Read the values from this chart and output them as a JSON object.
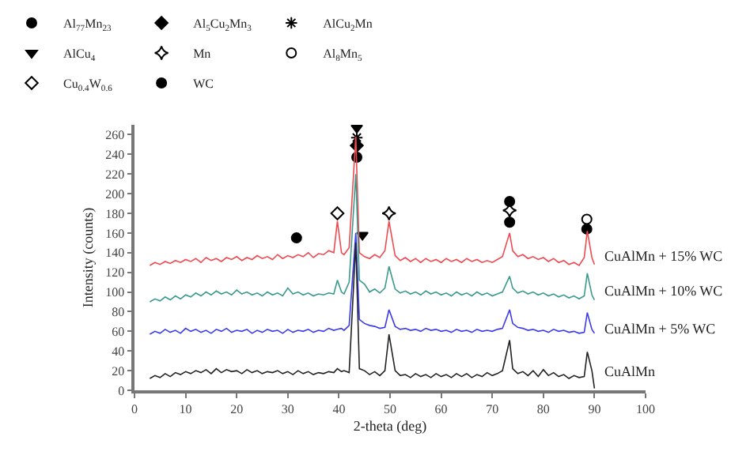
{
  "chart_data": {
    "type": "line",
    "xlabel": "2-theta (deg)",
    "ylabel": "Intensity (counts)",
    "xlim": [
      0,
      100
    ],
    "xticks": [
      0,
      10,
      20,
      30,
      40,
      50,
      60,
      70,
      80,
      90,
      100
    ],
    "ylim": [
      0,
      270
    ],
    "yticks": [
      0,
      20,
      40,
      60,
      80,
      100,
      120,
      140,
      160,
      180,
      200,
      220,
      240,
      260
    ],
    "legend": "top",
    "x": [
      3,
      4,
      5,
      6,
      7,
      8,
      9,
      10,
      11,
      12,
      13,
      14,
      15,
      16,
      17,
      18,
      19,
      20,
      21,
      22,
      23,
      24,
      25,
      26,
      27,
      28,
      29,
      30,
      31,
      32,
      33,
      34,
      35,
      36,
      37,
      38,
      39,
      39.7,
      40.5,
      41,
      42,
      43.3,
      44,
      45,
      46,
      47,
      48,
      49,
      49.8,
      51,
      52,
      53,
      54,
      55,
      56,
      57,
      58,
      59,
      60,
      61,
      62,
      63,
      64,
      65,
      66,
      67,
      68,
      69,
      70,
      71,
      72,
      73.4,
      74,
      75,
      76,
      77,
      78,
      79,
      80,
      81,
      82,
      83,
      84,
      85,
      86,
      87,
      88,
      88.6,
      89.5,
      90
    ],
    "series": [
      {
        "name": "CuAlMn + 15% WC",
        "color": "#ee4a50",
        "values": [
          127,
          130,
          128,
          131,
          129,
          132,
          130,
          133,
          131,
          134,
          130,
          135,
          132,
          134,
          131,
          135,
          133,
          136,
          132,
          135,
          133,
          137,
          134,
          136,
          133,
          138,
          134,
          137,
          135,
          138,
          136,
          140,
          135,
          139,
          138,
          142,
          140,
          172,
          140,
          138,
          145,
          258,
          140,
          136,
          134,
          138,
          135,
          142,
          172,
          137,
          132,
          135,
          131,
          134,
          130,
          134,
          131,
          133,
          130,
          134,
          131,
          133,
          130,
          134,
          131,
          133,
          130,
          132,
          130,
          133,
          136,
          160,
          142,
          136,
          138,
          134,
          136,
          133,
          135,
          131,
          134,
          130,
          132,
          128,
          130,
          127,
          135,
          162,
          135,
          128
        ]
      },
      {
        "name": "CuAlMn + 10% WC",
        "color": "#3a9a8e",
        "values": [
          90,
          93,
          91,
          95,
          92,
          96,
          93,
          97,
          95,
          99,
          96,
          100,
          97,
          101,
          98,
          100,
          97,
          102,
          98,
          100,
          97,
          99,
          96,
          100,
          97,
          99,
          96,
          104,
          98,
          100,
          97,
          99,
          96,
          98,
          97,
          99,
          98,
          112,
          100,
          98,
          110,
          220,
          112,
          108,
          100,
          103,
          99,
          104,
          126,
          103,
          99,
          101,
          98,
          100,
          97,
          101,
          98,
          100,
          97,
          99,
          96,
          100,
          97,
          99,
          96,
          100,
          97,
          99,
          96,
          98,
          100,
          116,
          104,
          99,
          101,
          98,
          100,
          97,
          99,
          96,
          98,
          95,
          97,
          94,
          96,
          93,
          96,
          119,
          97,
          92
        ]
      },
      {
        "name": "CuAlMn + 5% WC",
        "color": "#3a3aee",
        "values": [
          57,
          60,
          58,
          62,
          59,
          61,
          58,
          63,
          60,
          62,
          59,
          61,
          58,
          62,
          60,
          63,
          59,
          61,
          60,
          62,
          58,
          61,
          59,
          62,
          60,
          61,
          58,
          62,
          59,
          61,
          60,
          62,
          59,
          61,
          60,
          63,
          61,
          62,
          63,
          61,
          66,
          160,
          72,
          68,
          66,
          65,
          63,
          64,
          82,
          65,
          62,
          63,
          61,
          62,
          60,
          63,
          61,
          62,
          60,
          61,
          59,
          62,
          60,
          61,
          59,
          62,
          60,
          61,
          60,
          62,
          63,
          82,
          68,
          64,
          63,
          61,
          62,
          60,
          61,
          59,
          62,
          60,
          61,
          59,
          60,
          58,
          59,
          79,
          62,
          58
        ]
      },
      {
        "name": "CuAlMn",
        "color": "#222222",
        "values": [
          12,
          15,
          13,
          17,
          14,
          18,
          16,
          19,
          17,
          20,
          18,
          21,
          17,
          22,
          18,
          21,
          19,
          20,
          17,
          21,
          18,
          20,
          17,
          19,
          18,
          20,
          17,
          19,
          16,
          20,
          17,
          19,
          16,
          18,
          17,
          19,
          18,
          22,
          19,
          20,
          18,
          150,
          22,
          20,
          16,
          19,
          15,
          20,
          57,
          20,
          15,
          16,
          13,
          17,
          14,
          16,
          13,
          17,
          14,
          16,
          13,
          17,
          14,
          17,
          13,
          16,
          14,
          18,
          15,
          17,
          20,
          51,
          22,
          17,
          19,
          15,
          20,
          14,
          21,
          15,
          18,
          14,
          16,
          12,
          15,
          13,
          14,
          39,
          20,
          2
        ]
      },
      {
        "type": "scatter",
        "name": "Al$_{77}$Mn$_{23}$",
        "marker": "circle",
        "color": "#000000",
        "x": [
          null
        ],
        "values": [
          null
        ]
      },
      {
        "type": "scatter",
        "name": "Al$_{5}$Cu$_{2}$Mn$_{3}$",
        "marker": "diamond",
        "color": "#000000",
        "x": [
          43.5
        ],
        "values": [
          249
        ]
      },
      {
        "type": "scatter",
        "name": "AlCu$_{2}$Mn",
        "marker": "cross",
        "color": "#000000",
        "x": [
          43.5
        ],
        "values": [
          257
        ]
      },
      {
        "type": "scatter",
        "name": "AlCu$_{4}$",
        "marker": "triangle",
        "color": "#000000",
        "x": [
          43.5,
          44.6
        ],
        "values": [
          267,
          158
        ]
      },
      {
        "type": "scatter",
        "name": "Mn",
        "marker": "star",
        "color": "#ffffff",
        "x": [
          49.8,
          73.4
        ],
        "values": [
          180,
          183
        ]
      },
      {
        "type": "scatter",
        "name": "Al$_{8}$Mn$_{5}$",
        "marker": "circle",
        "color": "#ffffff",
        "x": [
          88.5
        ],
        "values": [
          174
        ]
      },
      {
        "type": "scatter",
        "name": "Cu$_{0.4}$W$_{0.6}$",
        "marker": "diamond",
        "color": "#ffffff",
        "x": [
          39.7
        ],
        "values": [
          180
        ]
      },
      {
        "type": "scatter",
        "name": "WC",
        "marker": "circle",
        "color": "#000000",
        "x": [
          31.7,
          43.5,
          73.4,
          73.4,
          88.5
        ],
        "values": [
          155,
          237,
          192,
          171,
          164
        ]
      }
    ]
  }
}
